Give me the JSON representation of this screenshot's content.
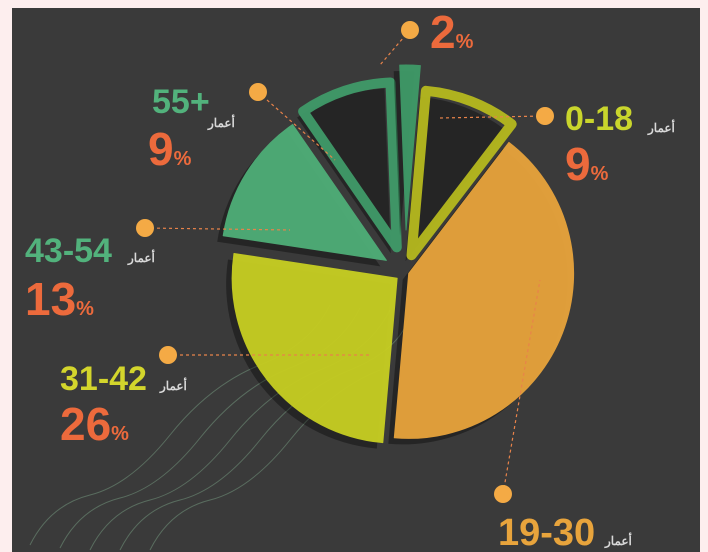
{
  "chart_data": {
    "type": "pie",
    "categories": [
      "0-18",
      "19-30",
      "31-42",
      "43-54",
      "55+",
      null
    ],
    "values": [
      9,
      41,
      26,
      13,
      9,
      2
    ],
    "value_suffix": "%",
    "category_word": "أعمار",
    "colors": [
      "#b5b81e",
      "#e8a43c",
      "#c8cf22",
      "#4fae78",
      "#3f9a68",
      "#3f9a68"
    ],
    "label_colors": [
      "#c9d52c",
      "#e8a43c",
      "#d3d52c",
      "#52b27c",
      "#52b27c",
      null
    ]
  }
}
